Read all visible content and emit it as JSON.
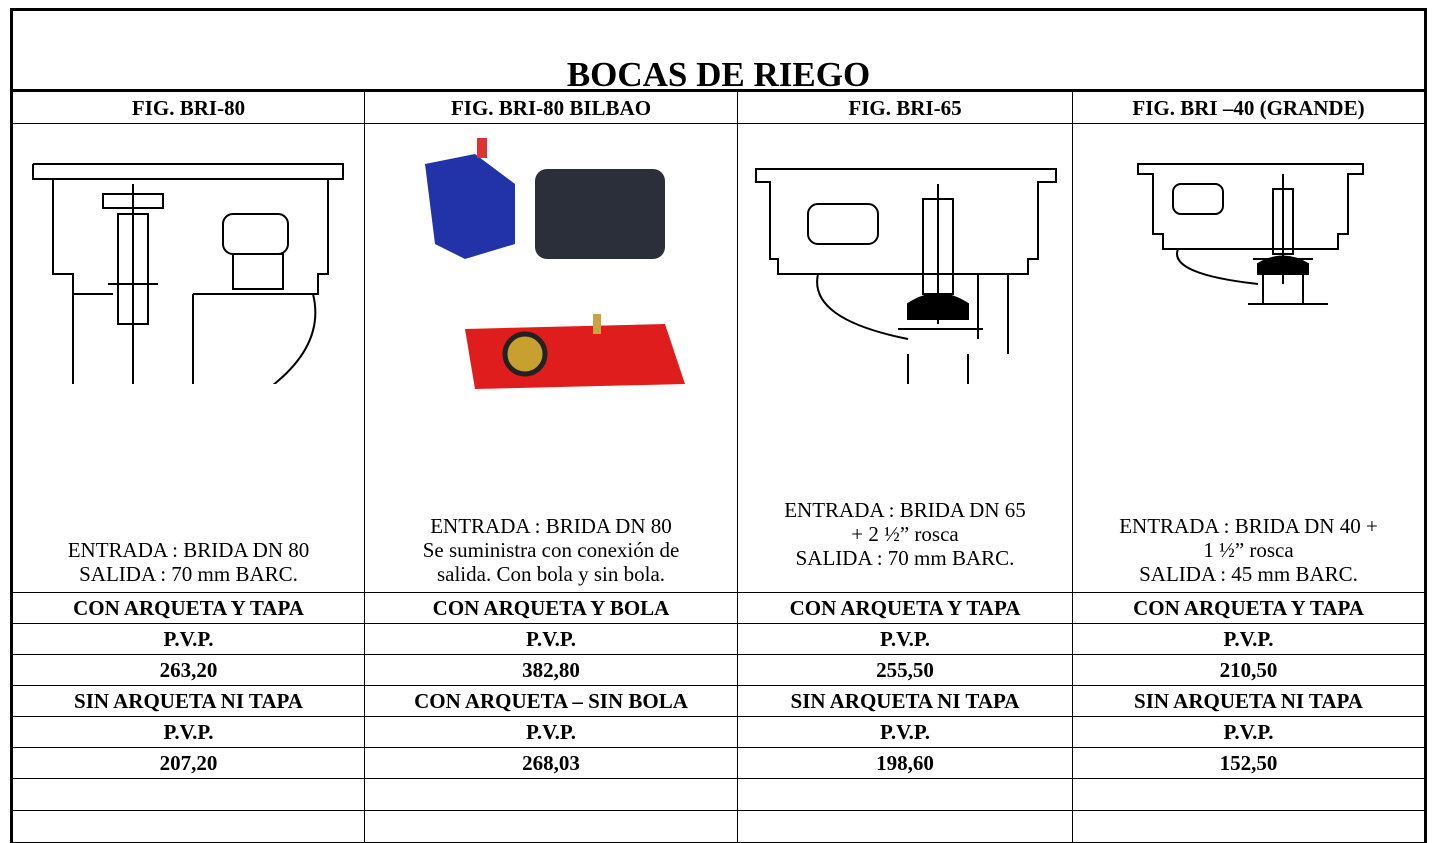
{
  "title": "BOCAS DE RIEGO",
  "table": {
    "header": [
      "FIG. BRI-80",
      "FIG. BRI-80 BILBAO",
      "FIG. BRI-65",
      "FIG. BRI –40 (GRANDE)"
    ],
    "descriptions": [
      [
        "ENTRADA : BRIDA DN 80",
        "SALIDA : 70 mm BARC."
      ],
      [
        "ENTRADA : BRIDA DN 80",
        "Se suministra con conexión de",
        "salida. Con bola y sin bola."
      ],
      [
        "ENTRADA : BRIDA DN 65",
        "+ 2 ½” rosca",
        "SALIDA : 70 mm BARC."
      ],
      [
        "ENTRADA : BRIDA DN 40 +",
        "1 ½”  rosca",
        "SALIDA : 45 mm BARC."
      ]
    ],
    "rows": [
      [
        "CON ARQUETA Y TAPA",
        "CON ARQUETA Y BOLA",
        "CON ARQUETA Y TAPA",
        "CON ARQUETA Y TAPA"
      ],
      [
        "P.V.P.",
        "P.V.P.",
        "P.V.P.",
        "P.V.P."
      ],
      [
        "263,20",
        "382,80",
        "255,50",
        "210,50"
      ],
      [
        "SIN ARQUETA NI TAPA",
        "CON ARQUETA – SIN BOLA",
        "SIN ARQUETA NI TAPA",
        "SIN ARQUETA NI TAPA"
      ],
      [
        "P.V.P.",
        "P.V.P.",
        "P.V.P.",
        "P.V.P."
      ],
      [
        "207,20",
        "268,03",
        "198,60",
        "152,50"
      ]
    ]
  }
}
